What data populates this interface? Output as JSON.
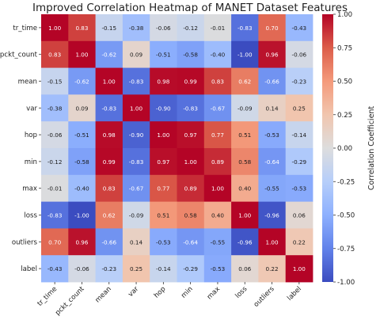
{
  "chart_data": {
    "type": "heatmap",
    "title": "Improved Correlation Heatmap of MANET Dataset Features",
    "xlabel": "",
    "ylabel": "",
    "colorbar_label": "Correlation Coefficient",
    "colormap": "coolwarm",
    "color_low": "#3b4cc0",
    "color_mid": "#dddddd",
    "color_high": "#b40426",
    "vmin": -1.0,
    "vmax": 1.0,
    "colorbar_ticks": [
      "1.00",
      "0.75",
      "0.50",
      "0.25",
      "0.00",
      "-0.25",
      "-0.50",
      "-0.75",
      "-1.00"
    ],
    "colorbar_tick_values": [
      1.0,
      0.75,
      0.5,
      0.25,
      0.0,
      -0.25,
      -0.5,
      -0.75,
      -1.0
    ],
    "labels": [
      "tr_time",
      "pckt_count",
      "mean",
      "var",
      "hop",
      "min",
      "max",
      "loss",
      "outliers",
      "label"
    ],
    "matrix": [
      [
        1.0,
        0.83,
        -0.15,
        -0.38,
        -0.06,
        -0.12,
        -0.01,
        -0.83,
        0.7,
        -0.43
      ],
      [
        0.83,
        1.0,
        -0.62,
        0.09,
        -0.51,
        -0.58,
        -0.4,
        -1.0,
        0.96,
        -0.06
      ],
      [
        -0.15,
        -0.62,
        1.0,
        -0.83,
        0.98,
        0.99,
        0.83,
        0.62,
        -0.66,
        -0.23
      ],
      [
        -0.38,
        0.09,
        -0.83,
        1.0,
        -0.9,
        -0.83,
        -0.67,
        -0.09,
        0.14,
        0.25
      ],
      [
        -0.06,
        -0.51,
        0.98,
        -0.9,
        1.0,
        0.97,
        0.77,
        0.51,
        -0.53,
        -0.14
      ],
      [
        -0.12,
        -0.58,
        0.99,
        -0.83,
        0.97,
        1.0,
        0.89,
        0.58,
        -0.64,
        -0.29
      ],
      [
        -0.01,
        -0.4,
        0.83,
        -0.67,
        0.77,
        0.89,
        1.0,
        0.4,
        -0.55,
        -0.53
      ],
      [
        -0.83,
        -1.0,
        0.62,
        -0.09,
        0.51,
        0.58,
        0.4,
        1.0,
        -0.96,
        0.06
      ],
      [
        0.7,
        0.96,
        -0.66,
        0.14,
        -0.53,
        -0.64,
        -0.55,
        -0.96,
        1.0,
        0.22
      ],
      [
        -0.43,
        -0.06,
        -0.23,
        0.25,
        -0.14,
        -0.29,
        -0.53,
        0.06,
        0.22,
        1.0
      ]
    ]
  }
}
